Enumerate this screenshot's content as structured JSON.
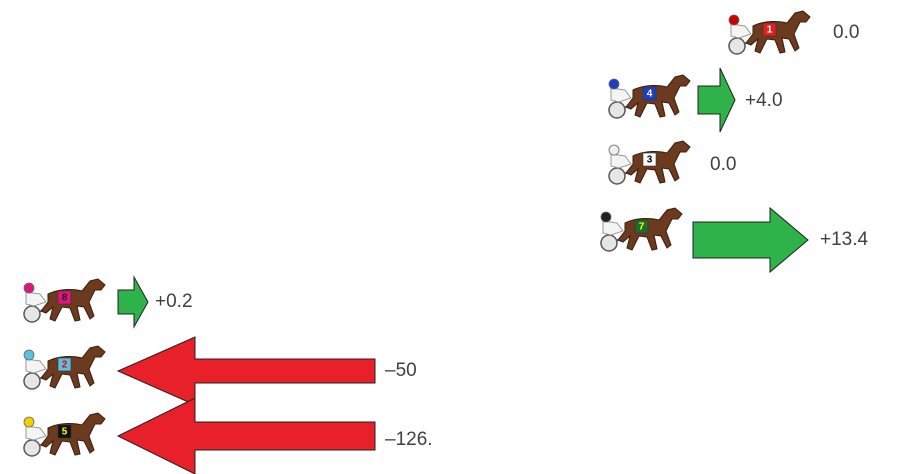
{
  "horses": [
    {
      "number": "1",
      "change": "0.0"
    },
    {
      "number": "4",
      "change": "+4.0"
    },
    {
      "number": "3",
      "change": "0.0"
    },
    {
      "number": "7",
      "change": "+13.4"
    },
    {
      "number": "8",
      "change": "+0.2"
    },
    {
      "number": "2",
      "change": "–50"
    },
    {
      "number": "5",
      "change": "–126."
    }
  ]
}
